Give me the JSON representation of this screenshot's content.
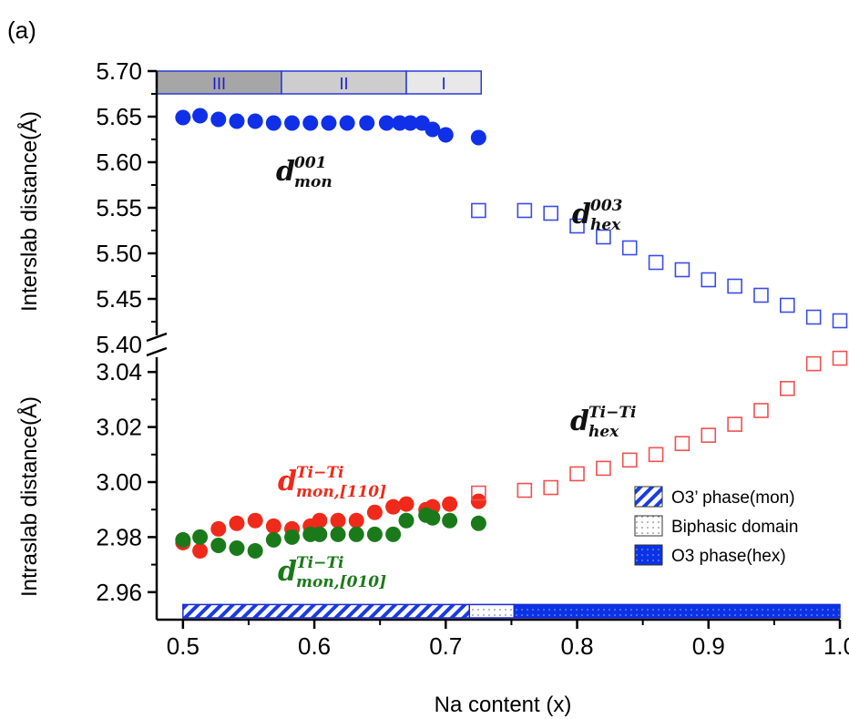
{
  "panel_label": "(a)",
  "chart_data": {
    "type": "scatter",
    "xlabel": "Na content (x)",
    "xlim": [
      0.48,
      1.0
    ],
    "x_ticks": [
      "0.5",
      "0.6",
      "0.7",
      "0.8",
      "0.9",
      "1.0"
    ],
    "grid": false,
    "upper": {
      "ylabel": "Interslab distance(Å)",
      "ylim": [
        5.4,
        5.7
      ],
      "y_ticks": [
        "5.40",
        "5.45",
        "5.50",
        "5.55",
        "5.60",
        "5.65",
        "5.70"
      ],
      "series": [
        {
          "key": "d001mon",
          "label_main": "d",
          "label_sup": "001",
          "label_sub": "mon",
          "color": "#1030e8",
          "marker": "filled-circle",
          "x": [
            0.5,
            0.513,
            0.527,
            0.541,
            0.555,
            0.569,
            0.583,
            0.597,
            0.611,
            0.625,
            0.64,
            0.655,
            0.665,
            0.673,
            0.682,
            0.69,
            0.7,
            0.725
          ],
          "y": [
            5.649,
            5.651,
            5.647,
            5.645,
            5.645,
            5.643,
            5.643,
            5.643,
            5.643,
            5.643,
            5.643,
            5.643,
            5.643,
            5.643,
            5.643,
            5.636,
            5.63,
            5.627
          ]
        },
        {
          "key": "d003hex",
          "label_main": "d",
          "label_sup": "003",
          "label_sub": "hex",
          "color": "#3a4ce6",
          "marker": "open-square",
          "x": [
            0.725,
            0.76,
            0.78,
            0.8,
            0.82,
            0.84,
            0.86,
            0.88,
            0.9,
            0.92,
            0.94,
            0.96,
            0.98,
            1.0
          ],
          "y": [
            5.547,
            5.547,
            5.544,
            5.53,
            5.518,
            5.506,
            5.49,
            5.482,
            5.471,
            5.464,
            5.454,
            5.443,
            5.43,
            5.426
          ]
        }
      ],
      "regions": [
        {
          "label": "III",
          "x0": 0.48,
          "x1": 0.575,
          "fill": "#a6a6a6"
        },
        {
          "label": "II",
          "x0": 0.575,
          "x1": 0.67,
          "fill": "#cdcdcd"
        },
        {
          "label": "I",
          "x0": 0.67,
          "x1": 0.727,
          "fill": "#e8e8e8"
        }
      ]
    },
    "lower": {
      "ylabel": "Intraslab distance(Å)",
      "ylim": [
        2.95,
        3.05
      ],
      "y_ticks": [
        "2.96",
        "2.98",
        "3.00",
        "3.02",
        "3.04"
      ],
      "series": [
        {
          "key": "dmon110",
          "label_main": "d",
          "label_sup": "Ti−Ti",
          "label_sub": "mon,[110]",
          "color": "#f02a1a",
          "marker": "filled-circle",
          "x": [
            0.5,
            0.513,
            0.527,
            0.541,
            0.555,
            0.569,
            0.583,
            0.597,
            0.604,
            0.618,
            0.632,
            0.646,
            0.66,
            0.67,
            0.685,
            0.69,
            0.703,
            0.725
          ],
          "y": [
            2.978,
            2.975,
            2.983,
            2.985,
            2.986,
            2.984,
            2.983,
            2.984,
            2.986,
            2.986,
            2.986,
            2.989,
            2.991,
            2.992,
            2.99,
            2.991,
            2.992,
            2.993
          ]
        },
        {
          "key": "dmon010",
          "label_main": "d",
          "label_sup": "Ti−Ti",
          "label_sub": "mon,[010]",
          "color": "#1a7a1a",
          "marker": "filled-circle",
          "x": [
            0.5,
            0.513,
            0.527,
            0.541,
            0.555,
            0.569,
            0.583,
            0.597,
            0.604,
            0.618,
            0.632,
            0.646,
            0.66,
            0.67,
            0.685,
            0.69,
            0.703,
            0.725
          ],
          "y": [
            2.979,
            2.98,
            2.977,
            2.976,
            2.975,
            2.979,
            2.98,
            2.981,
            2.981,
            2.981,
            2.981,
            2.981,
            2.981,
            2.986,
            2.988,
            2.987,
            2.986,
            2.985
          ]
        },
        {
          "key": "dhexTiTi",
          "label_main": "d",
          "label_sup": "Ti−Ti",
          "label_sub": "hex",
          "color": "#f05050",
          "marker": "open-square",
          "x": [
            0.725,
            0.76,
            0.78,
            0.8,
            0.82,
            0.84,
            0.86,
            0.88,
            0.9,
            0.92,
            0.94,
            0.96,
            0.98,
            1.0
          ],
          "y": [
            2.996,
            2.997,
            2.998,
            3.003,
            3.005,
            3.008,
            3.01,
            3.014,
            3.017,
            3.021,
            3.026,
            3.034,
            3.043,
            3.045
          ]
        }
      ],
      "phase_bar": [
        {
          "x0": 0.5,
          "x1": 0.718,
          "style": "hatch",
          "legend": "O3’ phase(mon)"
        },
        {
          "x0": 0.718,
          "x1": 0.752,
          "style": "dots",
          "legend": "Biphasic domain"
        },
        {
          "x0": 0.752,
          "x1": 1.0,
          "style": "dense-blue",
          "legend": "O3 phase(hex)"
        }
      ]
    }
  }
}
